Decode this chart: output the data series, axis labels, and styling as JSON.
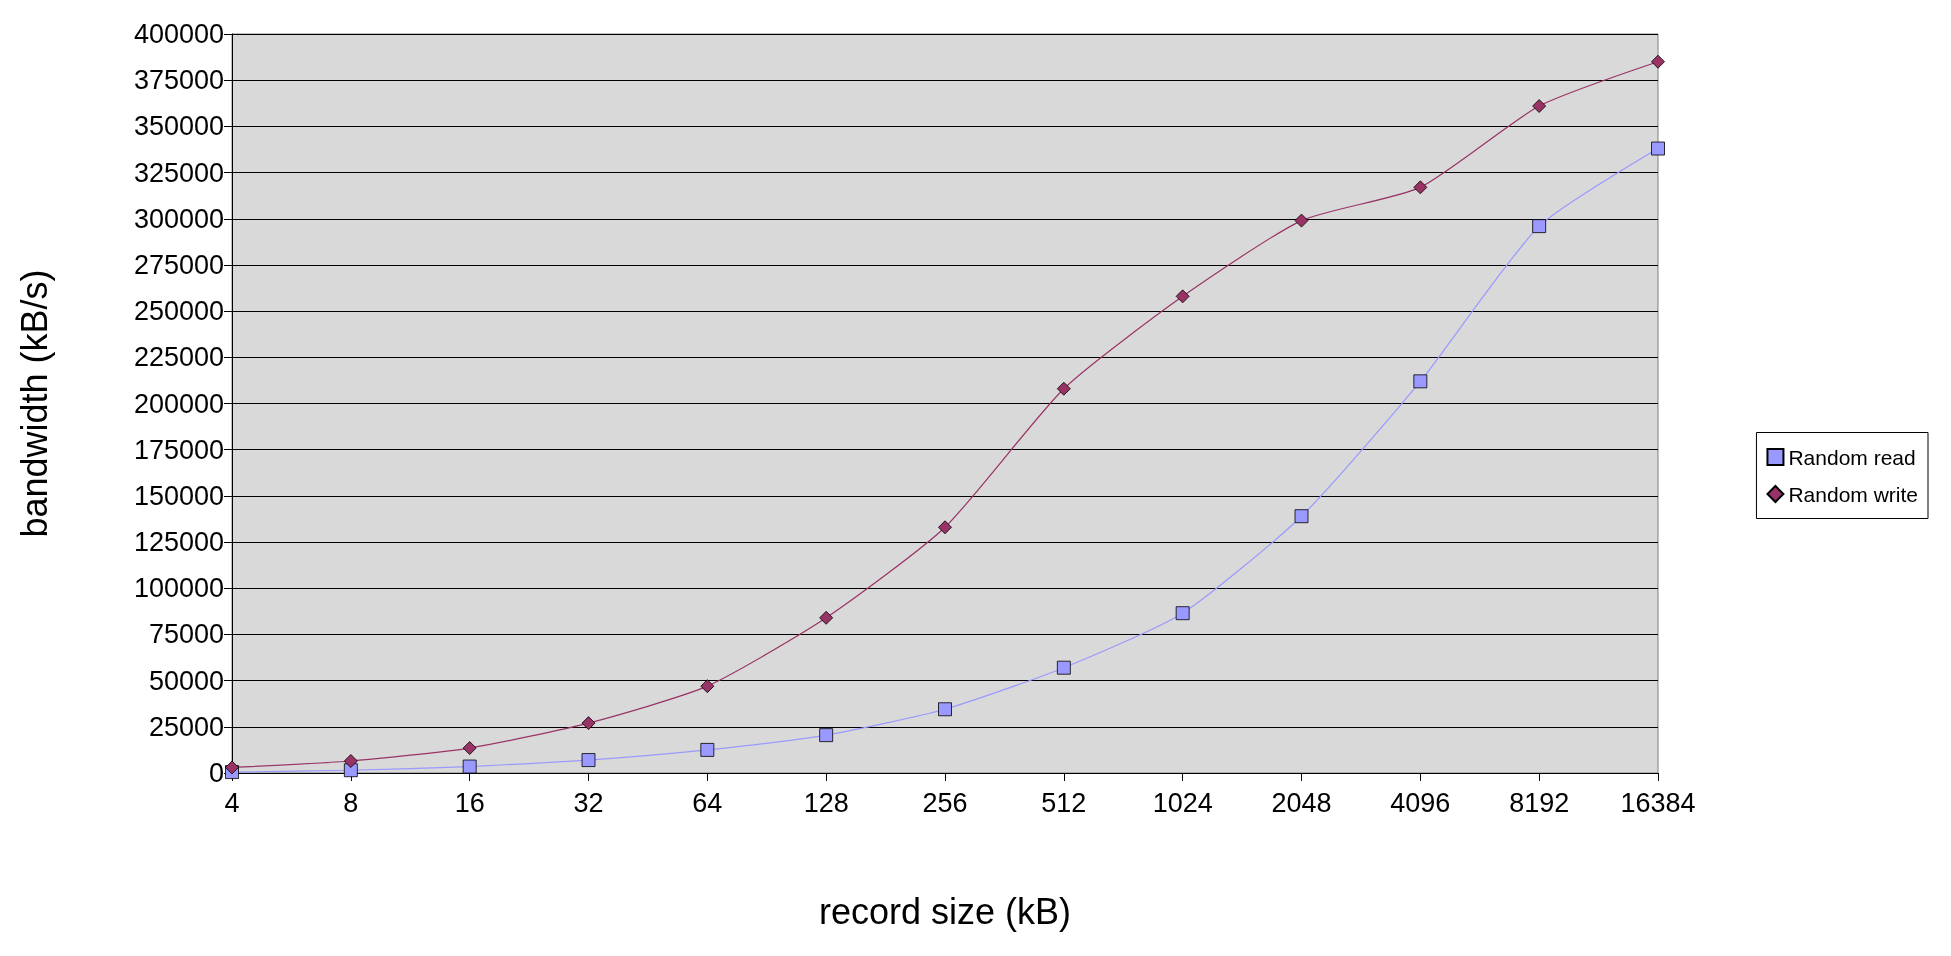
{
  "chart_data": {
    "type": "line",
    "xlabel": "record size (kB)",
    "ylabel": "bandwidth (kB/s)",
    "categories": [
      "4",
      "8",
      "16",
      "32",
      "64",
      "128",
      "256",
      "512",
      "1024",
      "2048",
      "4096",
      "8192",
      "16384"
    ],
    "series": [
      {
        "name": "Random read",
        "color": "#9999ff",
        "marker": "square",
        "values": [
          500,
          1500,
          3500,
          7000,
          12500,
          20500,
          34500,
          57000,
          86500,
          139000,
          212000,
          296000,
          338000
        ]
      },
      {
        "name": "Random write",
        "color": "#993366",
        "marker": "diamond",
        "values": [
          3000,
          6500,
          13500,
          27000,
          47000,
          84000,
          133000,
          208000,
          258000,
          299000,
          317000,
          361000,
          385000
        ]
      }
    ],
    "ylim": [
      0,
      400000
    ],
    "yticks": [
      0,
      25000,
      50000,
      75000,
      100000,
      125000,
      150000,
      175000,
      200000,
      225000,
      250000,
      275000,
      300000,
      325000,
      350000,
      375000,
      400000
    ],
    "grid": "y",
    "legend": "right"
  }
}
